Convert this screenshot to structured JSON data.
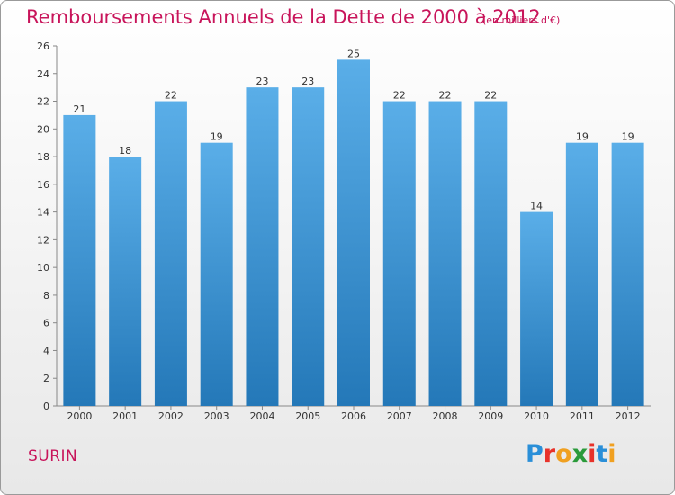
{
  "header": {
    "title": "Remboursements Annuels de la Dette de 2000 à 2012",
    "unit": "(en milliers d'€)"
  },
  "footer": {
    "commune": "SURIN",
    "logo": {
      "letters": [
        "P",
        "r",
        "o",
        "x",
        "i",
        "t",
        "i"
      ],
      "colors": [
        "#2a8fd8",
        "#e8322a",
        "#f0a020",
        "#2a9a3a",
        "#e8322a",
        "#2a8fd8",
        "#f0a020"
      ]
    }
  },
  "colors": {
    "title": "#c8145a",
    "bar_top": "#5aaee8",
    "bar_bottom": "#2478b8"
  },
  "chart_data": {
    "type": "bar",
    "title": "Remboursements Annuels de la Dette de 2000 à 2012",
    "xlabel": "",
    "ylabel": "",
    "categories": [
      "2000",
      "2001",
      "2002",
      "2003",
      "2004",
      "2005",
      "2006",
      "2007",
      "2008",
      "2009",
      "2010",
      "2011",
      "2012"
    ],
    "values": [
      21,
      18,
      22,
      19,
      23,
      23,
      25,
      22,
      22,
      22,
      14,
      19,
      19
    ],
    "ylim": [
      0,
      26
    ],
    "yticks": [
      0,
      2,
      4,
      6,
      8,
      10,
      12,
      14,
      16,
      18,
      20,
      22,
      24,
      26
    ],
    "grid": false,
    "data_labels": true
  }
}
